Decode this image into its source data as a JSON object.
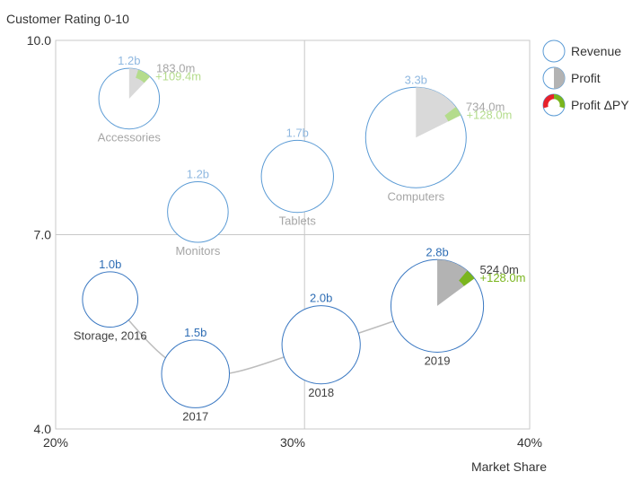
{
  "chart_data": {
    "type": "bubble-pie",
    "y_axis_title": "Customer Rating 0-10",
    "x_axis_title": "Market Share",
    "x_ticks": [
      {
        "value": 20,
        "label": "20%"
      },
      {
        "value": 30,
        "label": "30%"
      },
      {
        "value": 40,
        "label": "40%"
      }
    ],
    "y_ticks": [
      {
        "value": 4.0,
        "label": "4.0"
      },
      {
        "value": 7.0,
        "label": "7.0"
      },
      {
        "value": 10.0,
        "label": "10.0"
      }
    ],
    "xlim": [
      20,
      40
    ],
    "ylim": [
      4.0,
      10.0
    ],
    "quadrant_lines": {
      "x": 30.5,
      "y": 7.0
    },
    "legend": {
      "placement": "right",
      "items": [
        {
          "name": "revenue",
          "label": "Revenue"
        },
        {
          "name": "profit",
          "label": "Profit"
        },
        {
          "name": "profit-delta",
          "label": "Profit ΔPY"
        }
      ]
    },
    "colors": {
      "revenue_outline": "#5b9bd5",
      "highlight_outline": "#3a78c2",
      "profit_muted": "#d9d9d9",
      "profit_highlight": "#b3b3b3",
      "delta_pos_muted": "#b4dc8c",
      "delta_pos_highlight": "#7ab51d",
      "delta_neg": "#e8212a",
      "label_muted": "#a6a6a6",
      "revenue_label_muted": "#8fb8e0",
      "revenue_label_highlight": "#2e6db4",
      "grid": "#c8c8c8",
      "trail": "#bdbdbd"
    },
    "categories": [
      {
        "name": "Accessories",
        "x": 23.1,
        "y": 9.1,
        "revenue": 1.2,
        "revenue_label": "1.2b",
        "profit": 183.0,
        "profit_label": "183.0m",
        "delta": 109.4,
        "delta_label": "+109.4m",
        "style": "muted"
      },
      {
        "name": "Computers",
        "x": 35.2,
        "y": 8.5,
        "revenue": 3.3,
        "revenue_label": "3.3b",
        "profit": 734.0,
        "profit_label": "734.0m",
        "delta": 128.0,
        "delta_label": "+128.0m",
        "style": "muted"
      },
      {
        "name": "Tablets",
        "x": 30.2,
        "y": 7.9,
        "revenue": 1.7,
        "revenue_label": "1.7b",
        "profit": 0,
        "profit_label": "",
        "delta": 0,
        "delta_label": "",
        "style": "muted"
      },
      {
        "name": "Monitors",
        "x": 26.0,
        "y": 7.35,
        "revenue": 1.2,
        "revenue_label": "1.2b",
        "profit": 0,
        "profit_label": "",
        "delta": 0,
        "delta_label": "",
        "style": "muted"
      }
    ],
    "series_trail": [
      {
        "name": "Storage, 2016",
        "x": 22.3,
        "y": 6.0,
        "revenue": 1.0,
        "revenue_label": "1.0b",
        "profit": 0,
        "profit_label": "",
        "delta": 0,
        "delta_label": "",
        "style": "highlight"
      },
      {
        "name": "2017",
        "x": 25.9,
        "y": 4.85,
        "revenue": 1.5,
        "revenue_label": "1.5b",
        "profit": 0,
        "profit_label": "",
        "delta": 0,
        "delta_label": "",
        "style": "highlight"
      },
      {
        "name": "2018",
        "x": 31.2,
        "y": 5.3,
        "revenue": 2.0,
        "revenue_label": "2.0b",
        "profit": 0,
        "profit_label": "",
        "delta": 0,
        "delta_label": "",
        "style": "highlight"
      },
      {
        "name": "2019",
        "x": 36.1,
        "y": 5.9,
        "revenue": 2.8,
        "revenue_label": "2.8b",
        "profit": 524.0,
        "profit_label": "524.0m",
        "delta": 128.0,
        "delta_label": "+128.0m",
        "style": "highlight"
      }
    ]
  }
}
